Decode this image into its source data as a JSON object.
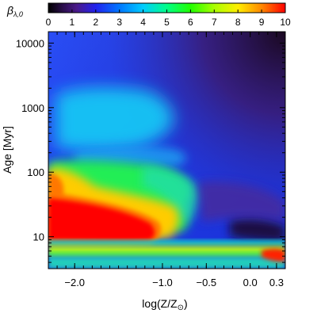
{
  "chart_data": {
    "type": "heatmap",
    "title": "",
    "colorbar": {
      "label": "β",
      "label_subscript": "λ,0",
      "range": [
        0,
        10
      ],
      "ticks": [
        "0",
        "1",
        "2",
        "3",
        "4",
        "5",
        "6",
        "7",
        "8",
        "9",
        "10"
      ],
      "colormap": "rainbow (black→purple→blue→cyan→green→yellow→red)"
    },
    "xlabel": "log(Z/Z",
    "xlabel_symbol": "⊙",
    "xlabel_end": ")",
    "ylabel": "Age  [Myr]",
    "x_range": [
      -2.3,
      0.4
    ],
    "y_range": [
      3.2,
      15000
    ],
    "y_scale": "log",
    "x_ticks": [
      {
        "value": -2.0,
        "label": "−2.0"
      },
      {
        "value": -1.0,
        "label": "−1.0"
      },
      {
        "value": -0.5,
        "label": "−0.5"
      },
      {
        "value": 0.0,
        "label": "0.0"
      },
      {
        "value": 0.3,
        "label": "0.3"
      }
    ],
    "y_ticks": [
      {
        "value": 10,
        "label": "10"
      },
      {
        "value": 100,
        "label": "100"
      },
      {
        "value": 1000,
        "label": "1000"
      },
      {
        "value": 10000,
        "label": "10000"
      }
    ],
    "regions": [
      {
        "age": [
          3.3,
          3.8
        ],
        "log_z": [
          -2.3,
          0.4
        ],
        "value": 4.5,
        "note": "cyan-green base band"
      },
      {
        "age": [
          4.0,
          6.5
        ],
        "log_z": [
          -2.3,
          0.4
        ],
        "value": 6.5,
        "note": "yellow-green band"
      },
      {
        "age": [
          4.5,
          5.5
        ],
        "log_z": [
          0.2,
          0.4
        ],
        "value": 10,
        "note": "red corner"
      },
      {
        "age": [
          6.5,
          8.0
        ],
        "log_z": [
          -2.3,
          0.4
        ],
        "value": 4.0,
        "note": "teal band"
      },
      {
        "age": [
          8,
          30
        ],
        "log_z": [
          -2.3,
          -1.25
        ],
        "value": 10,
        "note": "red core"
      },
      {
        "age": [
          10,
          40
        ],
        "log_z": [
          -2.0,
          -0.9
        ],
        "value": 8.0,
        "note": "orange/yellow halo"
      },
      {
        "age": [
          8,
          15
        ],
        "log_z": [
          -0.25,
          0.4
        ],
        "value": 0.8,
        "note": "dark pocket"
      },
      {
        "age": [
          40,
          120
        ],
        "log_z": [
          -2.3,
          -1.8
        ],
        "value": 8.0,
        "note": "yellow-orange"
      },
      {
        "age": [
          30,
          150
        ],
        "log_z": [
          -2.3,
          -0.4
        ],
        "value": 5.0,
        "note": "green tongue"
      },
      {
        "age": [
          200,
          1500
        ],
        "log_z": [
          -2.0,
          -0.9
        ],
        "value": 3.5,
        "note": "cyan plume"
      },
      {
        "age": [
          30,
          15000
        ],
        "log_z": [
          -2.3,
          0.4
        ],
        "value": 2.0,
        "note": "blue background"
      },
      {
        "age": [
          2000,
          15000
        ],
        "log_z": [
          -0.8,
          0.4
        ],
        "value": 1.0,
        "note": "purple/dark top-right"
      }
    ]
  }
}
